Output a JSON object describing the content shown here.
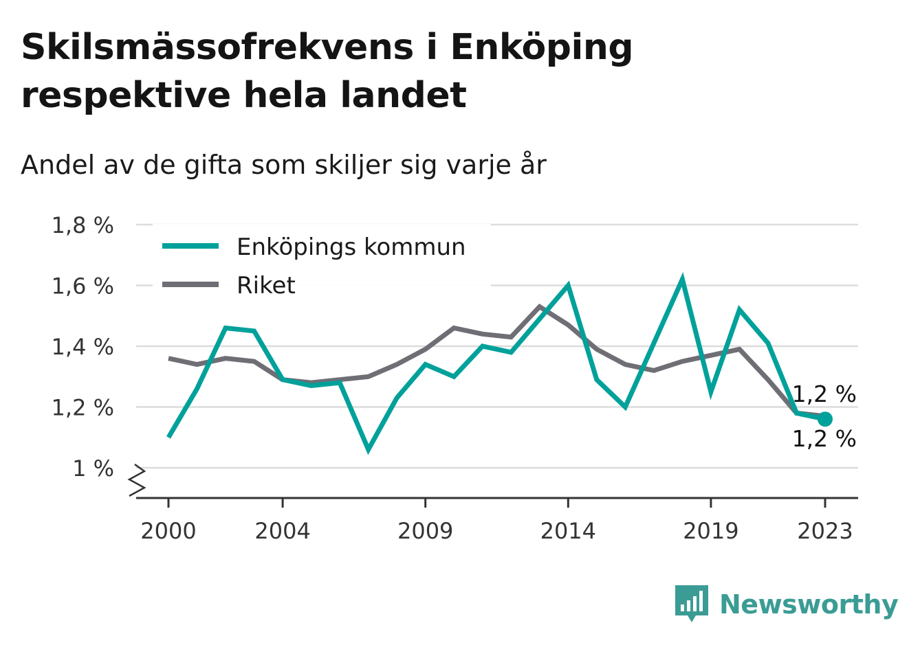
{
  "title": "Skilsmässofrekvens i Enköping respektive hela landet",
  "subtitle": "Andel av de gifta som skiljer sig varje år",
  "brand": {
    "name": "Newsworthy",
    "icon": "newsworthy-logo-icon",
    "color": "#3a9c94"
  },
  "chart_data": {
    "type": "line",
    "x": [
      2000,
      2001,
      2002,
      2003,
      2004,
      2005,
      2006,
      2007,
      2008,
      2009,
      2010,
      2011,
      2012,
      2013,
      2014,
      2015,
      2016,
      2017,
      2018,
      2019,
      2020,
      2021,
      2022,
      2023
    ],
    "x_ticks": [
      2000,
      2004,
      2009,
      2014,
      2019,
      2023
    ],
    "y_ticks": [
      1.0,
      1.2,
      1.4,
      1.6,
      1.8
    ],
    "y_tick_labels": [
      "1 %",
      "1,2 %",
      "1,4 %",
      "1,6 %",
      "1,8 %"
    ],
    "ylim": [
      0.9,
      1.8
    ],
    "y_axis_break": true,
    "grid": true,
    "legend_position": "top-left",
    "series": [
      {
        "name": "Enköpings kommun",
        "color": "#00a19a",
        "values": [
          1.1,
          1.26,
          1.46,
          1.45,
          1.29,
          1.27,
          1.28,
          1.06,
          1.23,
          1.34,
          1.3,
          1.4,
          1.38,
          1.49,
          1.6,
          1.29,
          1.2,
          1.41,
          1.62,
          1.25,
          1.52,
          1.41,
          1.18,
          1.16
        ],
        "end_label": "1,2 %"
      },
      {
        "name": "Riket",
        "color": "#6f6e75",
        "values": [
          1.36,
          1.34,
          1.36,
          1.35,
          1.29,
          1.28,
          1.29,
          1.3,
          1.34,
          1.39,
          1.46,
          1.44,
          1.43,
          1.53,
          1.47,
          1.39,
          1.34,
          1.32,
          1.35,
          1.37,
          1.39,
          1.29,
          1.18,
          1.17
        ],
        "end_label": "1,2 %"
      }
    ]
  }
}
